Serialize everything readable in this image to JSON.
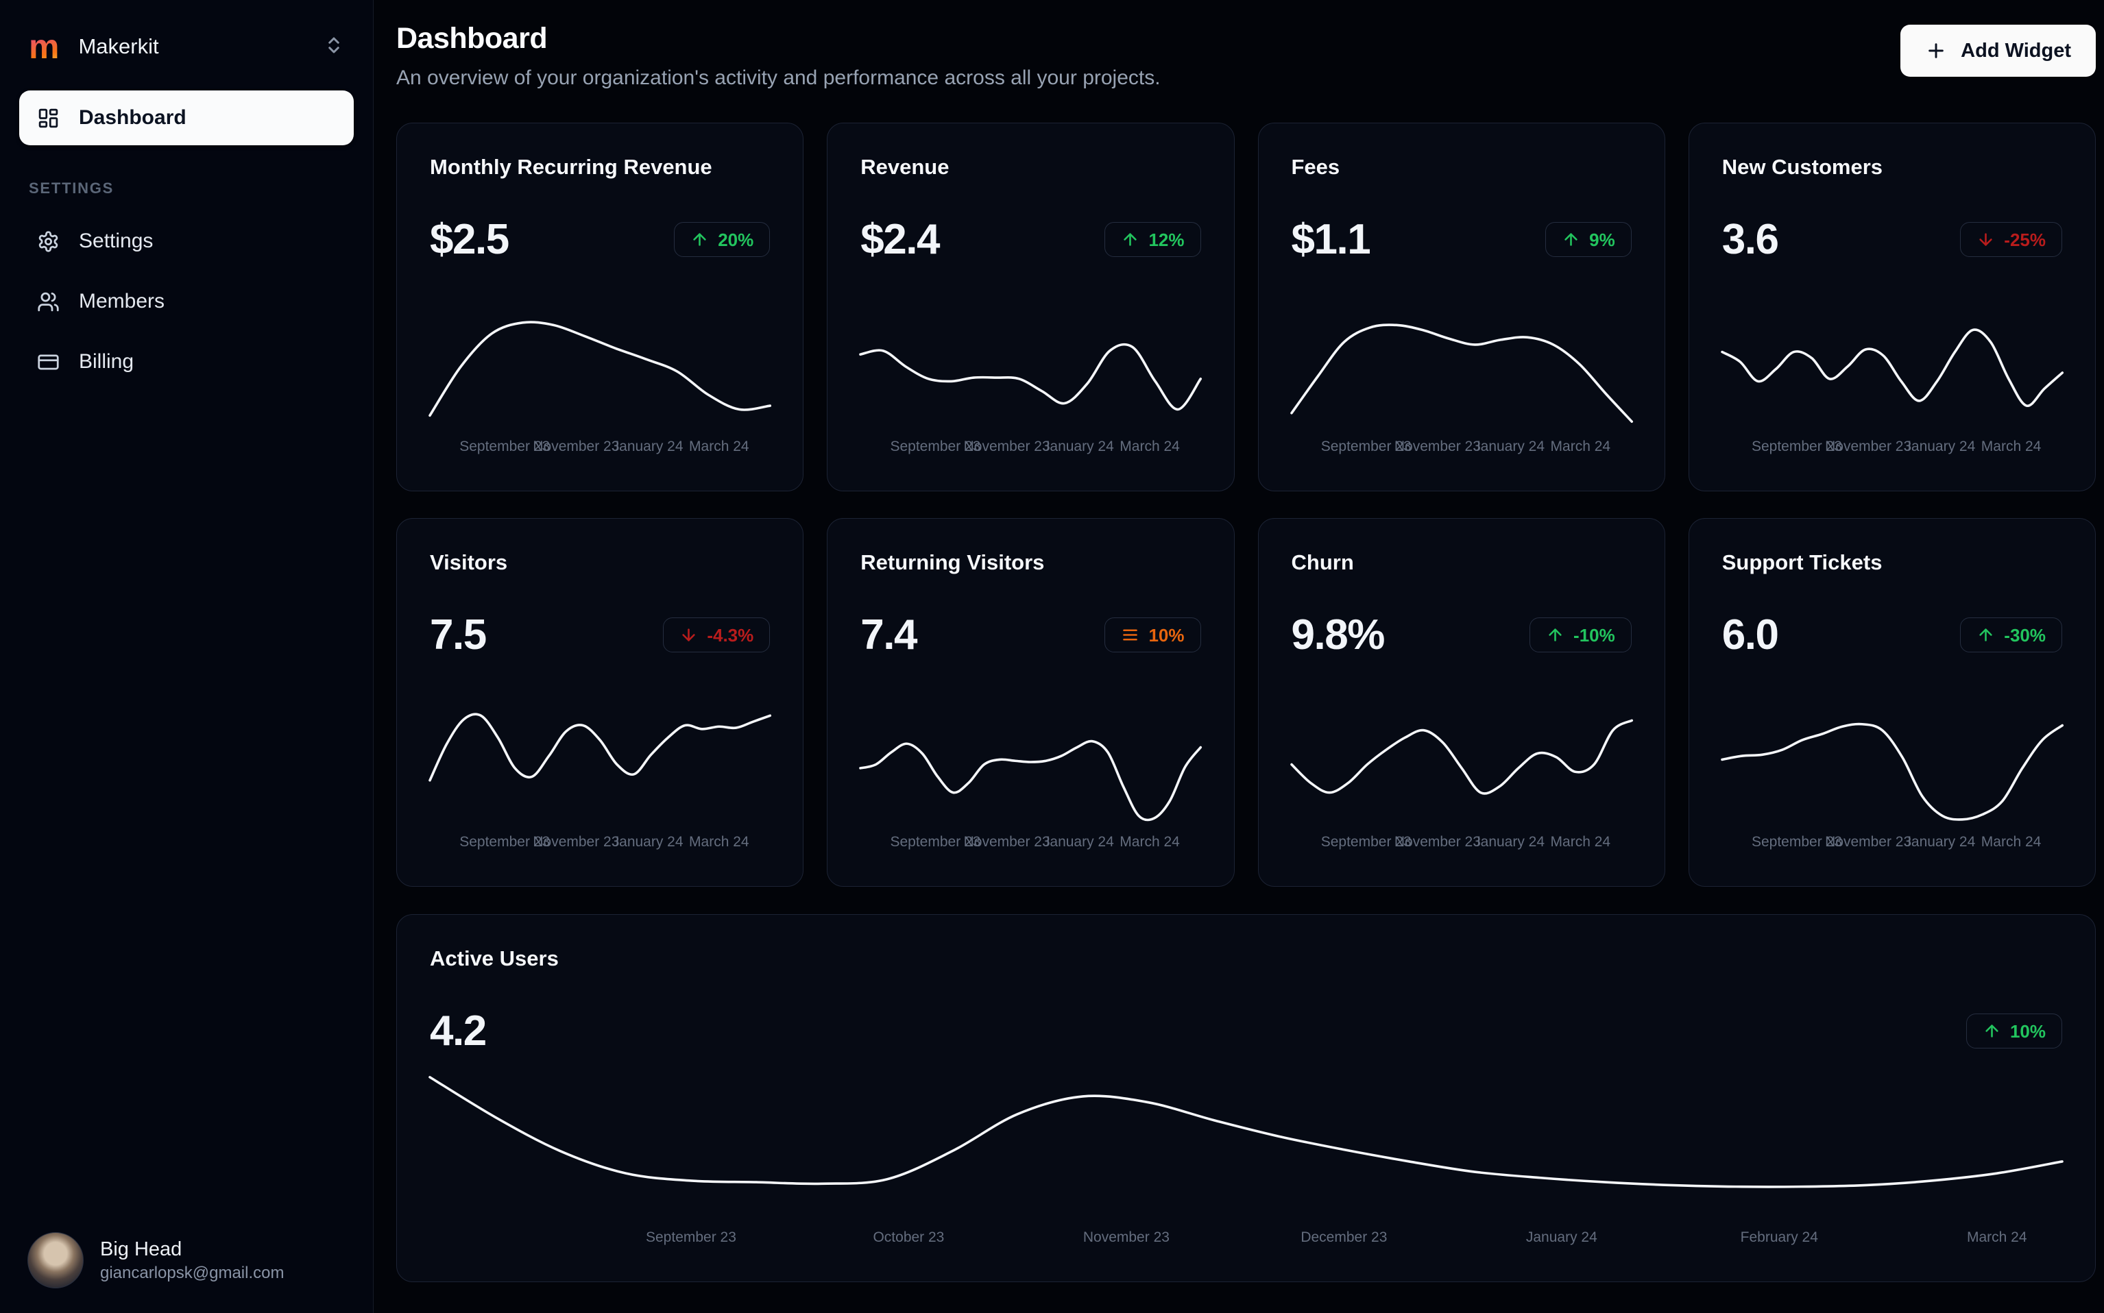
{
  "app": {
    "workspace": "Makerkit",
    "logo_letter": "m"
  },
  "sidebar": {
    "main_items": [
      {
        "label": "Dashboard",
        "icon": "dashboard",
        "active": true
      }
    ],
    "section_label": "SETTINGS",
    "settings_items": [
      {
        "label": "Settings",
        "icon": "gear"
      },
      {
        "label": "Members",
        "icon": "users"
      },
      {
        "label": "Billing",
        "icon": "credit-card"
      }
    ],
    "user": {
      "name": "Big Head",
      "email": "giancarlopsk@gmail.com"
    }
  },
  "header": {
    "title": "Dashboard",
    "subtitle": "An overview of your organization's activity and performance across all your projects.",
    "add_widget_label": "Add Widget"
  },
  "colors": {
    "positive": "#22c55e",
    "negative": "#b91c1c",
    "neutral": "#e8650e",
    "line": "#f5f7fa",
    "card_background": "#060a14",
    "card_border": "#1c2334",
    "page_background": "#020409"
  },
  "stat_cards": [
    {
      "title": "Monthly Recurring Revenue",
      "value": "$2.5",
      "badge": {
        "text": "20%",
        "icon": "arrow-up",
        "tone": "positive"
      },
      "x_labels": [
        "September 23",
        "November 23",
        "January 24",
        "March 24"
      ],
      "sparkline": [
        10,
        50,
        77,
        86,
        84,
        75,
        65,
        56,
        46,
        27,
        15,
        18
      ]
    },
    {
      "title": "Revenue",
      "value": "$2.4",
      "badge": {
        "text": "12%",
        "icon": "arrow-up",
        "tone": "positive"
      },
      "x_labels": [
        "September 23",
        "November 23",
        "January 24",
        "March 24"
      ],
      "sparkline": [
        60,
        63,
        50,
        40,
        38,
        41,
        41,
        40,
        30,
        20,
        36,
        63,
        66,
        38,
        15,
        40
      ]
    },
    {
      "title": "Fees",
      "value": "$1.1",
      "badge": {
        "text": "9%",
        "icon": "arrow-up",
        "tone": "positive"
      },
      "x_labels": [
        "September 23",
        "November 23",
        "January 24",
        "March 24"
      ],
      "sparkline": [
        12,
        42,
        70,
        82,
        84,
        80,
        73,
        68,
        72,
        74,
        68,
        52,
        28,
        5
      ]
    },
    {
      "title": "New Customers",
      "value": "3.6",
      "badge": {
        "text": "-25%",
        "icon": "arrow-down",
        "tone": "negative"
      },
      "x_labels": [
        "September 23",
        "November 23",
        "January 24",
        "March 24"
      ],
      "sparkline": [
        62,
        54,
        38,
        48,
        62,
        57,
        40,
        50,
        64,
        59,
        38,
        22,
        38,
        62,
        80,
        70,
        40,
        18,
        32,
        45
      ]
    },
    {
      "title": "Visitors",
      "value": "7.5",
      "badge": {
        "text": "-4.3%",
        "icon": "arrow-down",
        "tone": "negative"
      },
      "x_labels": [
        "September 23",
        "November 23",
        "January 24",
        "March 24"
      ],
      "sparkline": [
        35,
        65,
        85,
        88,
        70,
        45,
        38,
        55,
        75,
        80,
        68,
        48,
        40,
        56,
        70,
        80,
        77,
        79,
        78,
        83,
        88
      ]
    },
    {
      "title": "Returning Visitors",
      "value": "7.4",
      "badge": {
        "text": "10%",
        "icon": "menu",
        "tone": "neutral"
      },
      "x_labels": [
        "September 23",
        "November 23",
        "January 24",
        "March 24"
      ],
      "sparkline": [
        45,
        48,
        58,
        65,
        57,
        38,
        25,
        33,
        48,
        52,
        51,
        50,
        51,
        55,
        62,
        67,
        58,
        30,
        6,
        4,
        18,
        46,
        62
      ]
    },
    {
      "title": "Churn",
      "value": "9.8%",
      "badge": {
        "text": "-10%",
        "icon": "arrow-up",
        "tone": "positive"
      },
      "x_labels": [
        "September 23",
        "November 23",
        "January 24",
        "March 24"
      ],
      "sparkline": [
        48,
        33,
        25,
        33,
        48,
        60,
        70,
        76,
        66,
        45,
        25,
        30,
        45,
        57,
        54,
        42,
        48,
        76,
        84
      ]
    },
    {
      "title": "Support Tickets",
      "value": "6.0",
      "badge": {
        "text": "-30%",
        "icon": "arrow-up",
        "tone": "positive"
      },
      "x_labels": [
        "September 23",
        "November 23",
        "January 24",
        "March 24"
      ],
      "sparkline": [
        52,
        55,
        56,
        60,
        68,
        73,
        79,
        81,
        76,
        54,
        22,
        6,
        3,
        7,
        18,
        45,
        68,
        80
      ]
    }
  ],
  "active_users_card": {
    "title": "Active Users",
    "value": "4.2",
    "badge": {
      "text": "10%",
      "icon": "arrow-up",
      "tone": "positive"
    },
    "x_labels": [
      "September 23",
      "October 23",
      "November 23",
      "December 23",
      "January 24",
      "February 24",
      "March 24"
    ],
    "sparkline": [
      95,
      68,
      45,
      30,
      25,
      24,
      23,
      26,
      45,
      70,
      82,
      78,
      66,
      55,
      46,
      38,
      31,
      27,
      24,
      22,
      21,
      21,
      22,
      25,
      30,
      38
    ]
  }
}
